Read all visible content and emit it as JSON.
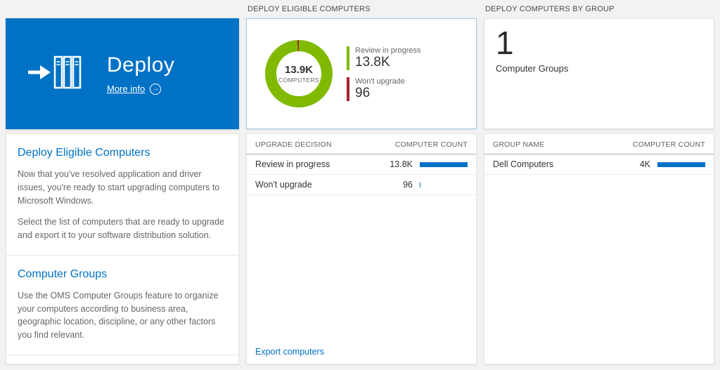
{
  "colors": {
    "page_bg": "#f2f2f2",
    "accent_blue": "#0072c6",
    "tile_blue": "#0072c6",
    "donut_green": "#7fba00",
    "donut_red": "#a4262c",
    "bar_blue": "#0072c6"
  },
  "left": {
    "tile": {
      "title": "Deploy",
      "more_info_label": "More info",
      "arrow_glyph": "→"
    },
    "section_deploy": {
      "heading": "Deploy Eligible Computers",
      "p1": "Now that you've resolved application and driver issues, you're ready to start upgrading computers to Microsoft Windows.",
      "p2": "Select the list of computers that are ready to upgrade and export it to your software distribution solution."
    },
    "section_groups": {
      "heading": "Computer Groups",
      "p1": "Use the OMS Computer Groups feature to organize your computers according to business area, geographic location, discipline, or any other factors you find relevant."
    }
  },
  "middle": {
    "header": "DEPLOY ELIGIBLE COMPUTERS",
    "donut": {
      "center_value": "13.9K",
      "center_label": "COMPUTERS"
    },
    "legend": [
      {
        "label": "Review in progress",
        "value": "13.8K",
        "color": "#7fba00"
      },
      {
        "label": "Won't upgrade",
        "value": "96",
        "color": "#a4262c"
      }
    ],
    "table": {
      "col1": "UPGRADE DECISION",
      "col2": "COMPUTER COUNT",
      "rows": [
        {
          "label": "Review in progress",
          "value": "13.8K",
          "bar_pct": 100
        },
        {
          "label": "Won't upgrade",
          "value": "96",
          "bar_pct": 2
        }
      ]
    },
    "export_link": "Export computers"
  },
  "right": {
    "header": "DEPLOY COMPUTERS BY GROUP",
    "summary": {
      "count": "1",
      "label": "Computer Groups"
    },
    "table": {
      "col1": "GROUP NAME",
      "col2": "COMPUTER COUNT",
      "rows": [
        {
          "label": "Dell Computers",
          "value": "4K",
          "bar_pct": 100
        }
      ]
    }
  },
  "chart_data": {
    "type": "pie",
    "variant": "donut",
    "title": "DEPLOY ELIGIBLE COMPUTERS",
    "labels": [
      "Review in progress",
      "Won't upgrade"
    ],
    "values": [
      13800,
      96
    ],
    "colors": [
      "#7fba00",
      "#a4262c"
    ],
    "center_value": "13.9K",
    "center_label": "COMPUTERS",
    "legend_position": "right"
  }
}
